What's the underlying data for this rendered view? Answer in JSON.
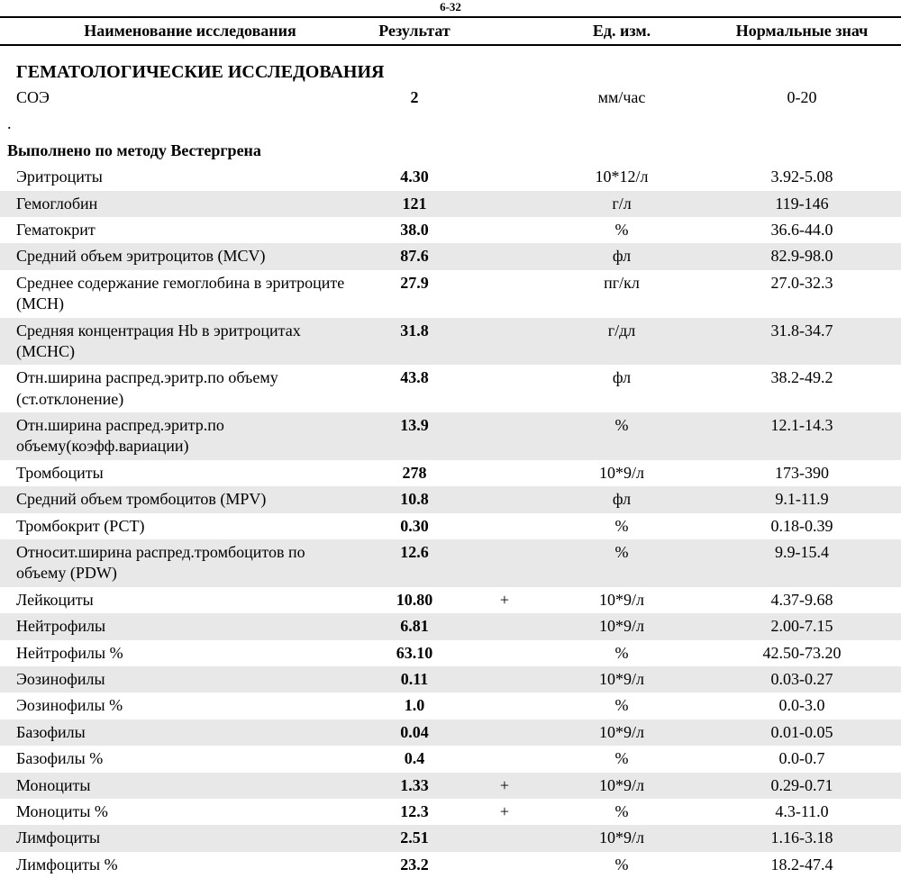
{
  "header": {
    "note_above": "6-32",
    "columns": [
      "Наименование исследования",
      "Результат",
      "Ед. изм.",
      "Нормальные знач"
    ]
  },
  "section_title": "ГЕМАТОЛОГИЧЕСКИЕ ИССЛЕДОВАНИЯ",
  "method_note": "Выполнено по методу Вестергрена",
  "row_colors": {
    "normal": "#ffffff",
    "alt": "#e8e8e8"
  },
  "rows": [
    {
      "name": "СОЭ",
      "result": "2",
      "flag": "",
      "unit": "мм/час",
      "range": "0-20",
      "alt": false,
      "has_method_note": true
    },
    {
      "name": "Эритроциты",
      "result": "4.30",
      "flag": "",
      "unit": "10*12/л",
      "range": "3.92-5.08",
      "alt": false
    },
    {
      "name": "Гемоглобин",
      "result": "121",
      "flag": "",
      "unit": "г/л",
      "range": "119-146",
      "alt": true
    },
    {
      "name": "Гематокрит",
      "result": "38.0",
      "flag": "",
      "unit": "%",
      "range": "36.6-44.0",
      "alt": false
    },
    {
      "name": "Средний объем эритроцитов (MCV)",
      "result": "87.6",
      "flag": "",
      "unit": "фл",
      "range": "82.9-98.0",
      "alt": true
    },
    {
      "name": "Среднее содержание гемоглобина в эритроците (МСН)",
      "result": "27.9",
      "flag": "",
      "unit": "пг/кл",
      "range": "27.0-32.3",
      "alt": false
    },
    {
      "name": "Средняя концентрация Hb в эритроцитах (МСНС)",
      "result": "31.8",
      "flag": "",
      "unit": "г/дл",
      "range": "31.8-34.7",
      "alt": true
    },
    {
      "name": "Отн.ширина распред.эритр.по объему (ст.отклонение)",
      "result": "43.8",
      "flag": "",
      "unit": "фл",
      "range": "38.2-49.2",
      "alt": false
    },
    {
      "name": "Отн.ширина распред.эритр.по объему(коэфф.вариации)",
      "result": "13.9",
      "flag": "",
      "unit": "%",
      "range": "12.1-14.3",
      "alt": true
    },
    {
      "name": "Тромбоциты",
      "result": "278",
      "flag": "",
      "unit": "10*9/л",
      "range": "173-390",
      "alt": false
    },
    {
      "name": "Средний объем тромбоцитов (MPV)",
      "result": "10.8",
      "flag": "",
      "unit": "фл",
      "range": "9.1-11.9",
      "alt": true
    },
    {
      "name": "Тромбокрит (РСТ)",
      "result": "0.30",
      "flag": "",
      "unit": "%",
      "range": "0.18-0.39",
      "alt": false
    },
    {
      "name": "Относит.ширина распред.тромбоцитов по объему (PDW)",
      "result": "12.6",
      "flag": "",
      "unit": "%",
      "range": "9.9-15.4",
      "alt": true
    },
    {
      "name": "Лейкоциты",
      "result": "10.80",
      "flag": "+",
      "unit": "10*9/л",
      "range": "4.37-9.68",
      "alt": false
    },
    {
      "name": "Нейтрофилы",
      "result": "6.81",
      "flag": "",
      "unit": "10*9/л",
      "range": "2.00-7.15",
      "alt": true
    },
    {
      "name": "Нейтрофилы %",
      "result": "63.10",
      "flag": "",
      "unit": "%",
      "range": "42.50-73.20",
      "alt": false
    },
    {
      "name": "Эозинофилы",
      "result": "0.11",
      "flag": "",
      "unit": "10*9/л",
      "range": "0.03-0.27",
      "alt": true
    },
    {
      "name": "Эозинофилы %",
      "result": "1.0",
      "flag": "",
      "unit": "%",
      "range": "0.0-3.0",
      "alt": false
    },
    {
      "name": "Базофилы",
      "result": "0.04",
      "flag": "",
      "unit": "10*9/л",
      "range": "0.01-0.05",
      "alt": true
    },
    {
      "name": "Базофилы %",
      "result": "0.4",
      "flag": "",
      "unit": "%",
      "range": "0.0-0.7",
      "alt": false
    },
    {
      "name": "Моноциты",
      "result": "1.33",
      "flag": "+",
      "unit": "10*9/л",
      "range": "0.29-0.71",
      "alt": true
    },
    {
      "name": "Моноциты %",
      "result": "12.3",
      "flag": "+",
      "unit": "%",
      "range": "4.3-11.0",
      "alt": false
    },
    {
      "name": "Лимфоциты",
      "result": "2.51",
      "flag": "",
      "unit": "10*9/л",
      "range": "1.16-3.18",
      "alt": true
    },
    {
      "name": "Лимфоциты %",
      "result": "23.2",
      "flag": "",
      "unit": "%",
      "range": "18.2-47.4",
      "alt": false
    }
  ]
}
